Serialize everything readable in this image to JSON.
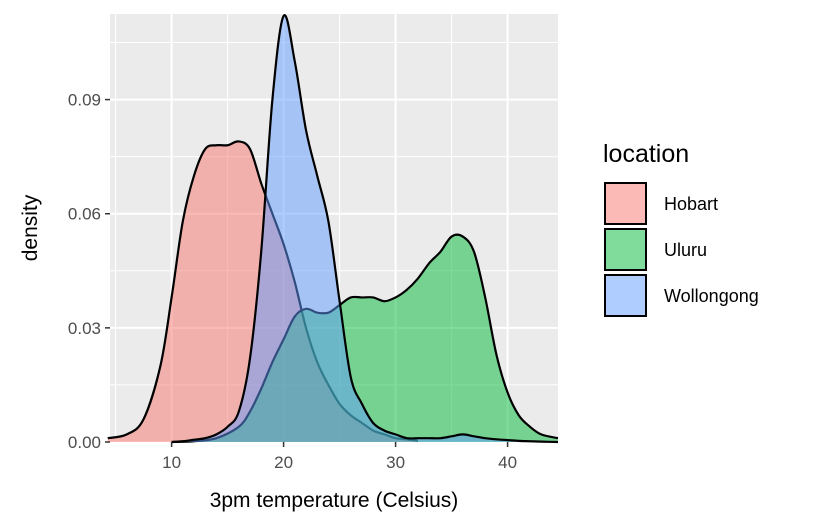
{
  "chart_data": {
    "type": "area",
    "title": "",
    "xlabel": "3pm temperature (Celsius)",
    "ylabel": "density",
    "xlim": [
      4.5,
      44.5
    ],
    "ylim": [
      0,
      0.1125
    ],
    "x_ticks": [
      10,
      20,
      30,
      40
    ],
    "x_tick_labels": [
      "10",
      "20",
      "30",
      "40"
    ],
    "y_ticks": [
      0,
      0.03,
      0.06,
      0.09
    ],
    "y_tick_labels": [
      "0.00",
      "0.03",
      "0.06",
      "0.09"
    ],
    "grid": true,
    "legend": {
      "title": "location",
      "placement": "right"
    },
    "series": [
      {
        "name": "Hobart",
        "color": "#F8766D",
        "x": [
          4.3,
          6,
          7.5,
          9,
          10,
          11,
          12,
          13,
          14,
          15,
          16,
          17,
          18,
          19,
          20,
          21,
          22,
          23,
          24,
          25,
          26,
          27,
          28,
          29,
          30,
          31,
          32
        ],
        "y": [
          0.001,
          0.002,
          0.006,
          0.02,
          0.038,
          0.058,
          0.07,
          0.077,
          0.078,
          0.078,
          0.079,
          0.077,
          0.068,
          0.06,
          0.052,
          0.042,
          0.03,
          0.021,
          0.015,
          0.01,
          0.007,
          0.005,
          0.003,
          0.002,
          0.001,
          0.0007,
          0.0003
        ]
      },
      {
        "name": "Uluru",
        "color": "#00BA38",
        "x": [
          10,
          12,
          14,
          16,
          17,
          18,
          19,
          20,
          21,
          22,
          23,
          24,
          25,
          26,
          27,
          28,
          29,
          30,
          31,
          32,
          33,
          34,
          35,
          36,
          37,
          38,
          39,
          40,
          41,
          42,
          43,
          44.5
        ],
        "y": [
          0,
          0.0002,
          0.001,
          0.004,
          0.008,
          0.014,
          0.021,
          0.027,
          0.033,
          0.035,
          0.034,
          0.034,
          0.036,
          0.038,
          0.038,
          0.038,
          0.037,
          0.038,
          0.04,
          0.043,
          0.047,
          0.05,
          0.054,
          0.054,
          0.05,
          0.038,
          0.023,
          0.013,
          0.007,
          0.004,
          0.002,
          0.001
        ]
      },
      {
        "name": "Wollongong",
        "color": "#619CFF",
        "x": [
          10,
          11,
          12,
          13,
          14,
          15,
          16,
          17,
          18,
          19,
          20,
          21,
          22,
          23,
          24,
          25,
          26,
          27,
          28,
          29,
          30,
          31,
          32,
          33,
          34,
          35,
          36,
          37,
          38,
          39,
          40,
          41,
          42,
          43,
          44.5
        ],
        "y": [
          0,
          0.0002,
          0.0006,
          0.001,
          0.002,
          0.004,
          0.008,
          0.022,
          0.05,
          0.09,
          0.112,
          0.1,
          0.082,
          0.07,
          0.058,
          0.037,
          0.017,
          0.01,
          0.005,
          0.003,
          0.002,
          0.001,
          0.001,
          0.001,
          0.001,
          0.0015,
          0.002,
          0.0015,
          0.001,
          0.0007,
          0.0005,
          0.0003,
          0.0002,
          0.0001,
          0
        ]
      }
    ]
  }
}
